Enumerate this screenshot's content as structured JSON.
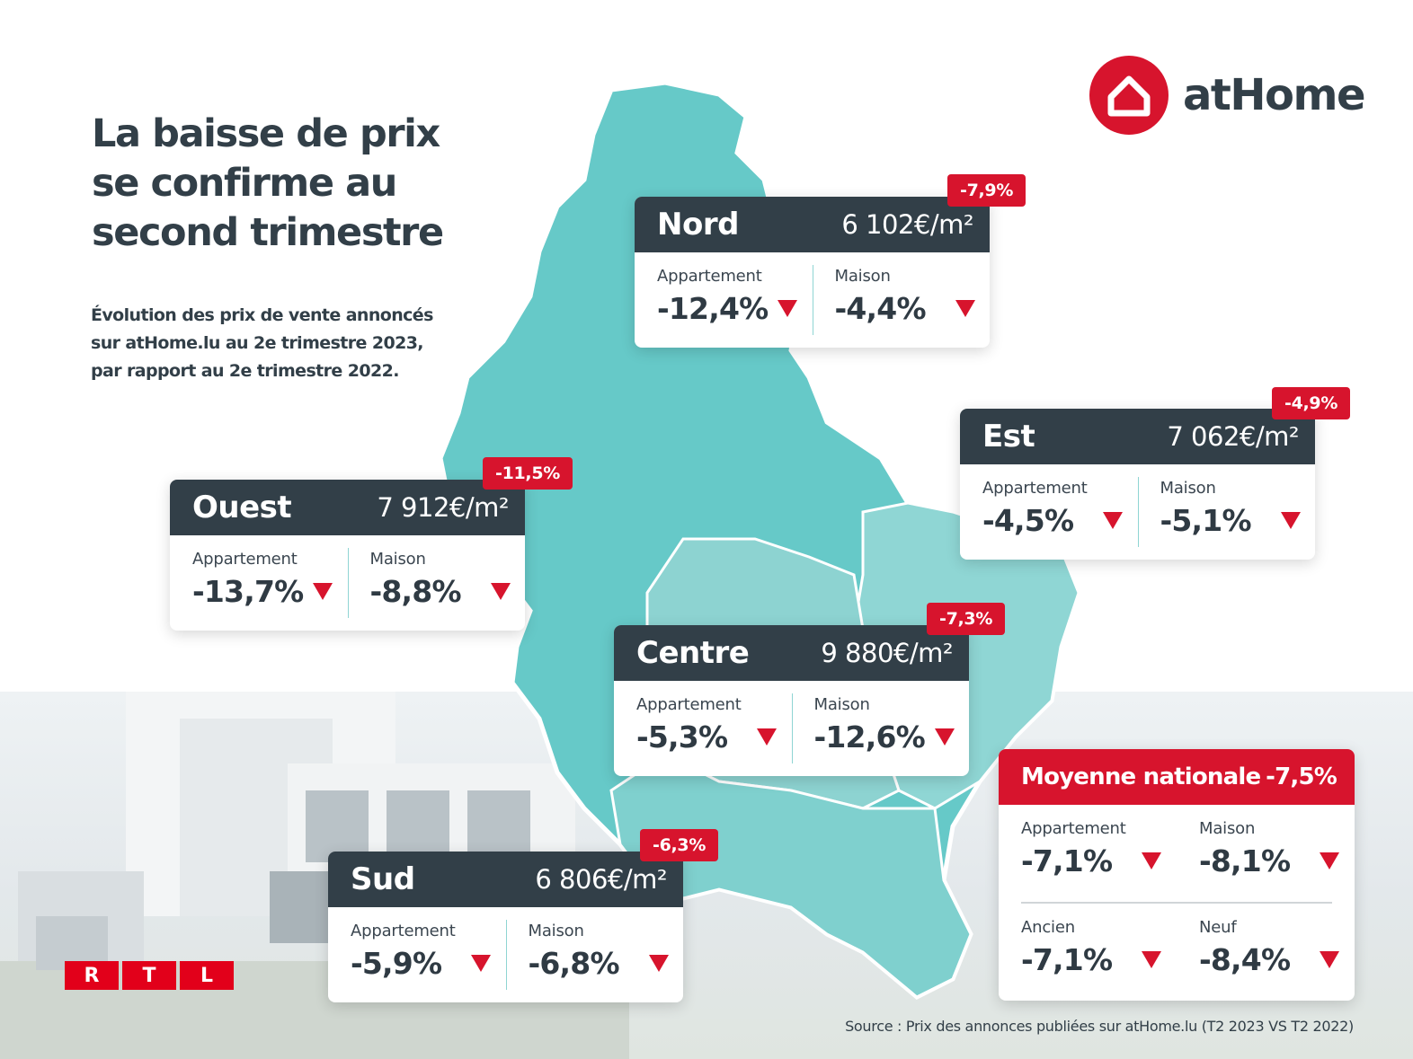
{
  "headline": "La baisse de prix se confirme au second trimestre",
  "subtitle": "Évolution des prix de vente annoncés sur atHome.lu au 2e trimestre 2023, par rapport au 2e trimestre 2022.",
  "logo": {
    "text": "atHome",
    "icon": "house-icon",
    "color": "#d7142d"
  },
  "colors": {
    "dark": "#323f48",
    "accent": "#d7142d",
    "map_teal": "#66c9c8",
    "map_light": "#8fd6d4"
  },
  "regions": [
    {
      "name": "Nord",
      "price": "6 102€/m²",
      "change": "-7,9%",
      "appartement_label": "Appartement",
      "appartement": "-12,4%",
      "maison_label": "Maison",
      "maison": "-4,4%"
    },
    {
      "name": "Est",
      "price": "7 062€/m²",
      "change": "-4,9%",
      "appartement_label": "Appartement",
      "appartement": "-4,5%",
      "maison_label": "Maison",
      "maison": "-5,1%"
    },
    {
      "name": "Ouest",
      "price": "7 912€/m²",
      "change": "-11,5%",
      "appartement_label": "Appartement",
      "appartement": "-13,7%",
      "maison_label": "Maison",
      "maison": "-8,8%"
    },
    {
      "name": "Centre",
      "price": "9 880€/m²",
      "change": "-7,3%",
      "appartement_label": "Appartement",
      "appartement": "-5,3%",
      "maison_label": "Maison",
      "maison": "-12,6%"
    },
    {
      "name": "Sud",
      "price": "6 806€/m²",
      "change": "-6,3%",
      "appartement_label": "Appartement",
      "appartement": "-5,9%",
      "maison_label": "Maison",
      "maison": "-6,8%"
    }
  ],
  "national": {
    "label": "Moyenne nationale",
    "change": "-7,5%",
    "appartement_label": "Appartement",
    "appartement": "-7,1%",
    "maison_label": "Maison",
    "maison": "-8,1%",
    "ancien_label": "Ancien",
    "ancien": "-7,1%",
    "neuf_label": "Neuf",
    "neuf": "-8,4%"
  },
  "rtl": {
    "letters": [
      "R",
      "T",
      "L"
    ]
  },
  "source": "Source : Prix des annonces publiées sur atHome.lu (T2 2023 VS T2 2022)"
}
